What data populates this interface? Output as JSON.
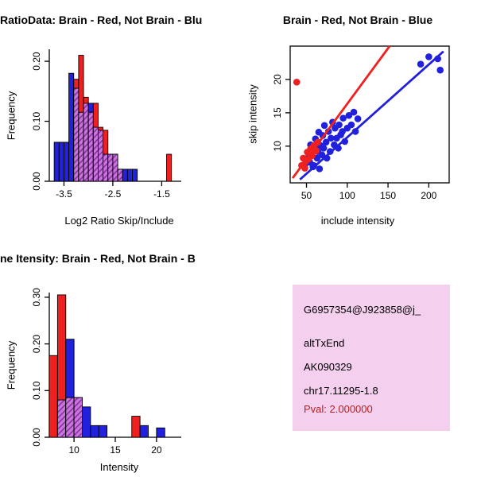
{
  "colors": {
    "red": "#EE2020",
    "blue": "#2020DD",
    "overlap_fill": "#C878D8",
    "overlap_line": "#8A2BA8",
    "pval": "#B22222",
    "info_bg": "#F4CFEE",
    "axis": "#000000"
  },
  "chart_data": [
    {
      "type": "bar",
      "subtype": "histogram-overlay",
      "title": "RatioData: Brain - Red, Not Brain - Blu",
      "xlabel": "Log2 Ratio Skip/Include",
      "ylabel": "Frequency",
      "xlim": [
        -3.8,
        -1.1
      ],
      "ylim": [
        0,
        0.22
      ],
      "xticks": [
        -3.5,
        -2.5,
        -1.5
      ],
      "xtick_labels": [
        "-3.5",
        "-2.5",
        "-1.5"
      ],
      "yticks": [
        0,
        0.1,
        0.2
      ],
      "ytick_labels": [
        "0.00",
        "0.10",
        "0.20"
      ],
      "bin_width": 0.1,
      "bin_starts": [
        -3.7,
        -3.6,
        -3.5,
        -3.4,
        -3.3,
        -3.2,
        -3.1,
        -3.0,
        -2.9,
        -2.8,
        -2.7,
        -2.6,
        -2.5,
        -2.4,
        -2.3,
        -2.2,
        -2.1,
        -2.0,
        -1.9,
        -1.8,
        -1.7,
        -1.6,
        -1.5,
        -1.4,
        -1.3
      ],
      "series": [
        {
          "name": "Not Brain",
          "color_key": "blue",
          "values": [
            0.065,
            0.065,
            0.065,
            0.18,
            0.155,
            0.115,
            0.13,
            0.13,
            0.09,
            0.085,
            0.045,
            0.045,
            0.045,
            0.02,
            0.02,
            0.02,
            0.02,
            0,
            0,
            0,
            0,
            0,
            0,
            0,
            0
          ]
        },
        {
          "name": "Brain",
          "color_key": "red",
          "values": [
            0,
            0,
            0,
            0,
            0.17,
            0.21,
            0.14,
            0.115,
            0.13,
            0.09,
            0.085,
            0.045,
            0.045,
            0.02,
            0,
            0,
            0,
            0,
            0,
            0,
            0,
            0,
            0,
            0.045,
            0
          ]
        }
      ],
      "grid": false,
      "legend": "none"
    },
    {
      "type": "scatter",
      "title": "Brain - Red, Not Brain - Blue",
      "xlabel": "include intensity",
      "ylabel": "skip intensity",
      "xlim": [
        30,
        225
      ],
      "ylim": [
        4.5,
        25
      ],
      "xticks": [
        50,
        100,
        150,
        200
      ],
      "xtick_labels": [
        "50",
        "100",
        "150",
        "200"
      ],
      "yticks": [
        10,
        15,
        20
      ],
      "ytick_labels": [
        "10",
        "15",
        "20"
      ],
      "series": [
        {
          "name": "Not Brain",
          "color_key": "blue",
          "points": [
            [
              48,
              7.2
            ],
            [
              50,
              8.1
            ],
            [
              52,
              9.0
            ],
            [
              54,
              7.6
            ],
            [
              55,
              10.2
            ],
            [
              57,
              8.6
            ],
            [
              59,
              7.1
            ],
            [
              60,
              9.6
            ],
            [
              61,
              11.1
            ],
            [
              63,
              8.2
            ],
            [
              64,
              9.2
            ],
            [
              65,
              12.1
            ],
            [
              67,
              10.1
            ],
            [
              69,
              8.7
            ],
            [
              70,
              11.6
            ],
            [
              71,
              9.7
            ],
            [
              72,
              13.1
            ],
            [
              74,
              10.6
            ],
            [
              75,
              8.2
            ],
            [
              77,
              12.2
            ],
            [
              79,
              9.2
            ],
            [
              80,
              11.2
            ],
            [
              82,
              13.6
            ],
            [
              84,
              10.2
            ],
            [
              85,
              12.7
            ],
            [
              87,
              11.2
            ],
            [
              89,
              9.7
            ],
            [
              90,
              13.2
            ],
            [
              92,
              11.7
            ],
            [
              94,
              12.2
            ],
            [
              95,
              14.2
            ],
            [
              97,
              10.7
            ],
            [
              100,
              12.7
            ],
            [
              102,
              14.6
            ],
            [
              105,
              13.2
            ],
            [
              108,
              15.1
            ],
            [
              110,
              12.2
            ],
            [
              113,
              14.1
            ],
            [
              58,
              6.9
            ],
            [
              66,
              6.6
            ],
            [
              190,
              22.3
            ],
            [
              200,
              23.4
            ],
            [
              211,
              23.1
            ],
            [
              214,
              21.4
            ]
          ]
        },
        {
          "name": "Brain",
          "color_key": "red",
          "points": [
            [
              38,
              19.6
            ],
            [
              44,
              7.1
            ],
            [
              46,
              8.2
            ],
            [
              48,
              6.7
            ],
            [
              49,
              7.7
            ],
            [
              51,
              9.1
            ],
            [
              53,
              8.1
            ],
            [
              55,
              9.6
            ],
            [
              57,
              8.6
            ],
            [
              59,
              10.1
            ],
            [
              62,
              9.3
            ],
            [
              64,
              10.6
            ]
          ]
        }
      ],
      "lines": [
        {
          "color_key": "blue",
          "x1": 42,
          "y1": 5.0,
          "x2": 218,
          "y2": 24.2
        },
        {
          "color_key": "red",
          "x1": 33,
          "y1": 5.2,
          "x2": 152,
          "y2": 25
        }
      ],
      "grid": false,
      "legend": "none"
    },
    {
      "type": "bar",
      "subtype": "histogram-overlay",
      "title": "ne Itensity: Brain - Red, Not Brain - B",
      "xlabel": "Intensity",
      "ylabel": "Frequency",
      "xlim": [
        7,
        23
      ],
      "ylim": [
        0,
        0.31
      ],
      "xticks": [
        10,
        15,
        20
      ],
      "xtick_labels": [
        "10",
        "15",
        "20"
      ],
      "yticks": [
        0,
        0.1,
        0.2,
        0.3
      ],
      "ytick_labels": [
        "0.00",
        "0.10",
        "0.20",
        "0.30"
      ],
      "bin_width": 1,
      "bin_starts": [
        7,
        8,
        9,
        10,
        11,
        12,
        13,
        14,
        15,
        16,
        17,
        18,
        19,
        20,
        21
      ],
      "series": [
        {
          "name": "Not Brain",
          "color_key": "blue",
          "values": [
            0,
            0.08,
            0.21,
            0.085,
            0.065,
            0.025,
            0.025,
            0,
            0,
            0,
            0,
            0.025,
            0,
            0.02,
            0
          ]
        },
        {
          "name": "Brain",
          "color_key": "red",
          "values": [
            0.175,
            0.305,
            0.085,
            0.085,
            0,
            0,
            0,
            0,
            0,
            0,
            0.045,
            0,
            0,
            0,
            0
          ]
        }
      ],
      "grid": false,
      "legend": "none"
    }
  ],
  "info_panel": {
    "lines": [
      "G6957354@J923858@j_",
      "altTxEnd",
      "AK090329",
      "chr17.11295-1.8"
    ],
    "pval_line": "Pval: 2.000000"
  }
}
